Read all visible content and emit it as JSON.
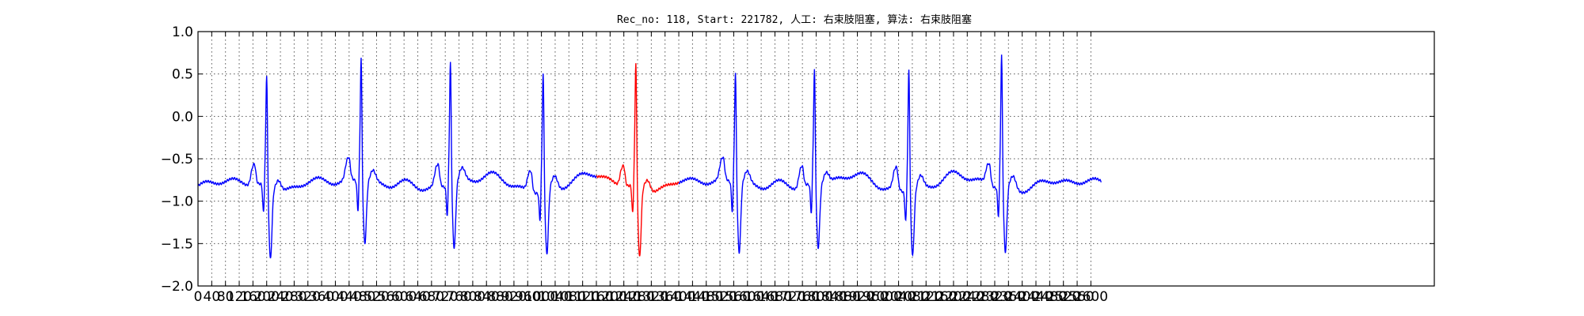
{
  "chart_data": {
    "type": "line",
    "title": "Rec_no: 118, Start: 221782, 人工: 右束肢阻塞, 算法: 右束肢阻塞",
    "xlabel": "",
    "ylabel": "",
    "xlim": [
      0,
      3600
    ],
    "ylim": [
      -2.0,
      1.0
    ],
    "yticks": [
      1.0,
      0.5,
      0.0,
      -0.5,
      -1.0,
      -1.5,
      -2.0
    ],
    "ytick_labels": [
      "1.0",
      "0.5",
      "0.0",
      "−0.5",
      "−1.0",
      "−1.5",
      "−2.0"
    ],
    "xticks": [
      0,
      40,
      80,
      120,
      160,
      200,
      240,
      280,
      320,
      360,
      400,
      440,
      480,
      520,
      560,
      600,
      640,
      680,
      720,
      760,
      800,
      840,
      880,
      920,
      960,
      1000,
      1040,
      1080,
      1120,
      1160,
      1200,
      1240,
      1280,
      1320,
      1360,
      1400,
      1440,
      1480,
      1520,
      1560,
      1600,
      1640,
      1680,
      1720,
      1760,
      1800,
      1840,
      1880,
      1920,
      1960,
      2000,
      2040,
      2080,
      2120,
      2160,
      2200,
      2240,
      2280,
      2320,
      2360,
      2400,
      2440,
      2480,
      2520,
      2560,
      2600
    ],
    "xtick_labels": [
      "0",
      "40",
      "80",
      "120",
      "160",
      "200",
      "240",
      "280",
      "320",
      "360",
      "400",
      "440",
      "480",
      "520",
      "560",
      "600",
      "640",
      "680",
      "720",
      "760",
      "800",
      "840",
      "880",
      "920",
      "960",
      "1000",
      "1040",
      "1080",
      "1120",
      "1160",
      "1200",
      "1240",
      "1280",
      "1320",
      "1360",
      "1400",
      "1440",
      "1480",
      "1520",
      "1560",
      "1600",
      "1640",
      "1680",
      "1720",
      "1760",
      "1800",
      "1840",
      "1880",
      "1920",
      "1960",
      "2000",
      "2040",
      "2080",
      "2120",
      "2160",
      "2200",
      "2240",
      "2280",
      "2320",
      "2360",
      "2400",
      "2440",
      "2480",
      "2520",
      "2560",
      "2600"
    ],
    "grid": true,
    "x_end": 2630,
    "beats": [
      {
        "r": 200,
        "peak": 0.68,
        "trough": -1.88
      },
      {
        "r": 475,
        "peak": 0.85,
        "trough": -1.75
      },
      {
        "r": 735,
        "peak": 0.83,
        "trough": -1.8
      },
      {
        "r": 1005,
        "peak": 0.75,
        "trough": -1.83
      },
      {
        "r": 1275,
        "peak": 0.82,
        "trough": -1.88
      },
      {
        "r": 1565,
        "peak": 0.68,
        "trough": -1.85
      },
      {
        "r": 1795,
        "peak": 0.73,
        "trough": -1.78
      },
      {
        "r": 2070,
        "peak": 0.83,
        "trough": -1.8
      },
      {
        "r": 2340,
        "peak": 0.92,
        "trough": -1.83
      }
    ],
    "series": [
      {
        "color": "#0000ff"
      },
      {
        "color": "#ff0000",
        "x_range": [
          1160,
          1400
        ]
      }
    ]
  }
}
